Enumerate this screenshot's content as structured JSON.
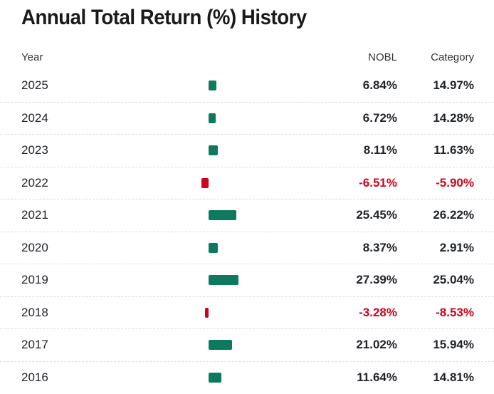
{
  "title": "Annual Total Return (%) History",
  "headers": {
    "year": "Year",
    "fund": "NOBL",
    "category": "Category"
  },
  "colors": {
    "positive": "#0d7a5f",
    "negative": "#d0021b"
  },
  "chart_data": {
    "type": "bar",
    "orientation": "horizontal",
    "title": "Annual Total Return (%) History",
    "categories": [
      "2025",
      "2024",
      "2023",
      "2022",
      "2021",
      "2020",
      "2019",
      "2018",
      "2017",
      "2016"
    ],
    "series": [
      {
        "name": "NOBL",
        "values": [
          6.84,
          6.72,
          8.11,
          -6.51,
          25.45,
          8.37,
          27.39,
          -3.28,
          21.02,
          11.64
        ],
        "labels": [
          "6.84%",
          "6.72%",
          "8.11%",
          "-6.51%",
          "25.45%",
          "8.37%",
          "27.39%",
          "-3.28%",
          "21.02%",
          "11.64%"
        ]
      },
      {
        "name": "Category",
        "values": [
          14.97,
          14.28,
          11.63,
          -5.9,
          26.22,
          2.91,
          25.04,
          -8.53,
          15.94,
          14.81
        ],
        "labels": [
          "14.97%",
          "14.28%",
          "11.63%",
          "-5.90%",
          "26.22%",
          "2.91%",
          "25.04%",
          "-8.53%",
          "15.94%",
          "14.81%"
        ]
      }
    ],
    "bar_series": "NOBL"
  }
}
